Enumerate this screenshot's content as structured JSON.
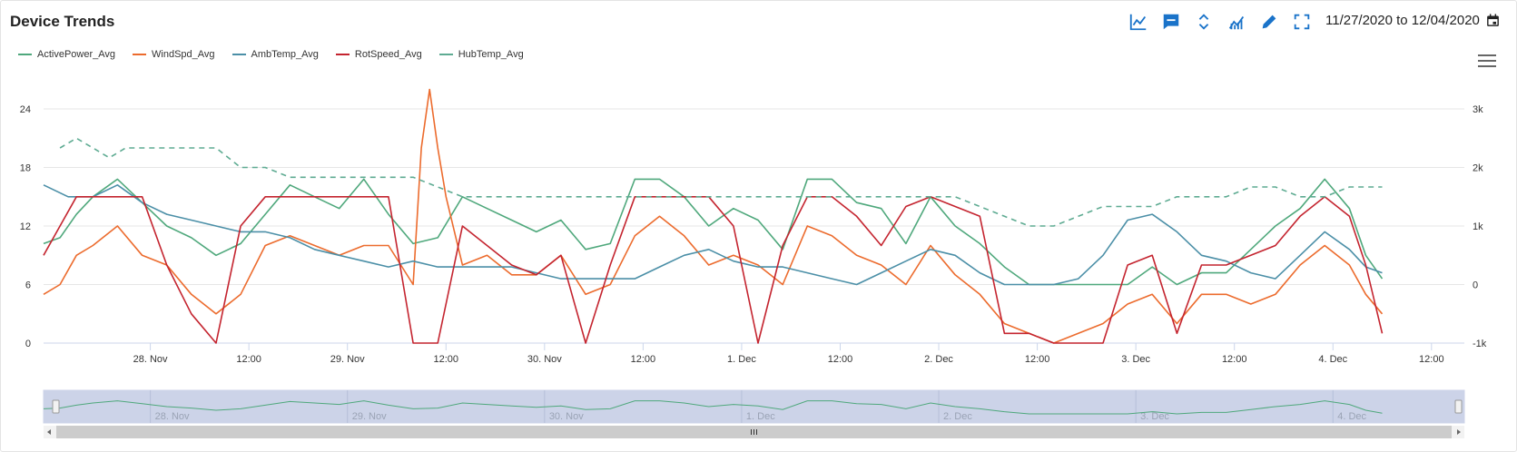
{
  "header": {
    "title": "Device Trends",
    "date_range": "11/27/2020 to 12/04/2020",
    "toolbar": [
      {
        "name": "line-chart-icon"
      },
      {
        "name": "comment-icon"
      },
      {
        "name": "expand-collapse-icon"
      },
      {
        "name": "trend-chart-icon"
      },
      {
        "name": "pencil-icon"
      },
      {
        "name": "fullscreen-icon"
      }
    ],
    "accent_color": "#1a73c9"
  },
  "chart_data": {
    "type": "line",
    "title": "",
    "xlabel": "",
    "x_range": [
      "2020-11-27T11:00",
      "2020-12-04T16:00"
    ],
    "x_ticks": [
      {
        "t": "2020-11-28T00:00",
        "label": "28. Nov"
      },
      {
        "t": "2020-11-28T12:00",
        "label": "12:00"
      },
      {
        "t": "2020-11-29T00:00",
        "label": "29. Nov"
      },
      {
        "t": "2020-11-29T12:00",
        "label": "12:00"
      },
      {
        "t": "2020-11-30T00:00",
        "label": "30. Nov"
      },
      {
        "t": "2020-11-30T12:00",
        "label": "12:00"
      },
      {
        "t": "2020-12-01T00:00",
        "label": "1. Dec"
      },
      {
        "t": "2020-12-01T12:00",
        "label": "12:00"
      },
      {
        "t": "2020-12-02T00:00",
        "label": "2. Dec"
      },
      {
        "t": "2020-12-02T12:00",
        "label": "12:00"
      },
      {
        "t": "2020-12-03T00:00",
        "label": "3. Dec"
      },
      {
        "t": "2020-12-03T12:00",
        "label": "12:00"
      },
      {
        "t": "2020-12-04T00:00",
        "label": "4. Dec"
      },
      {
        "t": "2020-12-04T12:00",
        "label": "12:00"
      }
    ],
    "y_left": {
      "ticks": [
        "0",
        "6",
        "12",
        "18",
        "24"
      ],
      "range": [
        0,
        24
      ]
    },
    "y_right": {
      "ticks": [
        "-1k",
        "0",
        "1k",
        "2k",
        "3k"
      ],
      "range": [
        -1000,
        3000
      ]
    },
    "grid": true,
    "legend_position": "top-left",
    "navigator_labels": [
      "28. Nov",
      "29. Nov",
      "30. Nov",
      "1. Dec",
      "2. Dec",
      "3. Dec",
      "4. Dec"
    ],
    "series": [
      {
        "name": "ActivePower_Avg",
        "color": "#4fa87c",
        "axis": "right",
        "values": [
          [
            0,
            700
          ],
          [
            2,
            800
          ],
          [
            4,
            1200
          ],
          [
            6,
            1500
          ],
          [
            9,
            1800
          ],
          [
            12,
            1400
          ],
          [
            15,
            1000
          ],
          [
            18,
            800
          ],
          [
            21,
            500
          ],
          [
            24,
            700
          ],
          [
            27,
            1200
          ],
          [
            30,
            1700
          ],
          [
            33,
            1500
          ],
          [
            36,
            1300
          ],
          [
            39,
            1800
          ],
          [
            42,
            1200
          ],
          [
            45,
            700
          ],
          [
            48,
            800
          ],
          [
            51,
            1500
          ],
          [
            54,
            1300
          ],
          [
            57,
            1100
          ],
          [
            60,
            900
          ],
          [
            63,
            1100
          ],
          [
            66,
            600
          ],
          [
            69,
            700
          ],
          [
            72,
            1800
          ],
          [
            75,
            1800
          ],
          [
            78,
            1500
          ],
          [
            81,
            1000
          ],
          [
            84,
            1300
          ],
          [
            87,
            1100
          ],
          [
            90,
            600
          ],
          [
            93,
            1800
          ],
          [
            96,
            1800
          ],
          [
            99,
            1400
          ],
          [
            102,
            1300
          ],
          [
            105,
            700
          ],
          [
            108,
            1500
          ],
          [
            111,
            1000
          ],
          [
            114,
            700
          ],
          [
            117,
            300
          ],
          [
            120,
            0
          ],
          [
            123,
            0
          ],
          [
            126,
            0
          ],
          [
            129,
            0
          ],
          [
            132,
            0
          ],
          [
            135,
            300
          ],
          [
            138,
            0
          ],
          [
            141,
            200
          ],
          [
            144,
            200
          ],
          [
            147,
            600
          ],
          [
            150,
            1000
          ],
          [
            153,
            1300
          ],
          [
            156,
            1800
          ],
          [
            159,
            1300
          ],
          [
            161,
            500
          ],
          [
            163,
            100
          ]
        ]
      },
      {
        "name": "WindSpd_Avg",
        "color": "#ec6b2d",
        "axis": "left",
        "values": [
          [
            0,
            5
          ],
          [
            2,
            6
          ],
          [
            4,
            9
          ],
          [
            6,
            10
          ],
          [
            9,
            12
          ],
          [
            12,
            9
          ],
          [
            15,
            8
          ],
          [
            18,
            5
          ],
          [
            21,
            3
          ],
          [
            24,
            5
          ],
          [
            27,
            10
          ],
          [
            30,
            11
          ],
          [
            33,
            10
          ],
          [
            36,
            9
          ],
          [
            39,
            10
          ],
          [
            42,
            10
          ],
          [
            45,
            6
          ],
          [
            46,
            20
          ],
          [
            47,
            26
          ],
          [
            48,
            20
          ],
          [
            49,
            15
          ],
          [
            51,
            8
          ],
          [
            54,
            9
          ],
          [
            57,
            7
          ],
          [
            60,
            7
          ],
          [
            63,
            9
          ],
          [
            66,
            5
          ],
          [
            69,
            6
          ],
          [
            72,
            11
          ],
          [
            75,
            13
          ],
          [
            78,
            11
          ],
          [
            81,
            8
          ],
          [
            84,
            9
          ],
          [
            87,
            8
          ],
          [
            90,
            6
          ],
          [
            93,
            12
          ],
          [
            96,
            11
          ],
          [
            99,
            9
          ],
          [
            102,
            8
          ],
          [
            105,
            6
          ],
          [
            108,
            10
          ],
          [
            111,
            7
          ],
          [
            114,
            5
          ],
          [
            117,
            2
          ],
          [
            120,
            1
          ],
          [
            123,
            0
          ],
          [
            126,
            1
          ],
          [
            129,
            2
          ],
          [
            132,
            4
          ],
          [
            135,
            5
          ],
          [
            138,
            2
          ],
          [
            141,
            5
          ],
          [
            144,
            5
          ],
          [
            147,
            4
          ],
          [
            150,
            5
          ],
          [
            153,
            8
          ],
          [
            156,
            10
          ],
          [
            159,
            8
          ],
          [
            161,
            5
          ],
          [
            163,
            3
          ]
        ]
      },
      {
        "name": "AmbTemp_Avg",
        "color": "#4b8fa7",
        "axis": "right",
        "values": [
          [
            0,
            1700
          ],
          [
            3,
            1500
          ],
          [
            6,
            1500
          ],
          [
            9,
            1700
          ],
          [
            12,
            1400
          ],
          [
            15,
            1200
          ],
          [
            18,
            1100
          ],
          [
            21,
            1000
          ],
          [
            24,
            900
          ],
          [
            27,
            900
          ],
          [
            30,
            800
          ],
          [
            33,
            600
          ],
          [
            36,
            500
          ],
          [
            39,
            400
          ],
          [
            42,
            300
          ],
          [
            45,
            400
          ],
          [
            48,
            300
          ],
          [
            51,
            300
          ],
          [
            54,
            300
          ],
          [
            57,
            300
          ],
          [
            60,
            200
          ],
          [
            63,
            100
          ],
          [
            66,
            100
          ],
          [
            69,
            100
          ],
          [
            72,
            100
          ],
          [
            75,
            300
          ],
          [
            78,
            500
          ],
          [
            81,
            600
          ],
          [
            84,
            400
          ],
          [
            87,
            300
          ],
          [
            90,
            300
          ],
          [
            93,
            200
          ],
          [
            96,
            100
          ],
          [
            99,
            0
          ],
          [
            102,
            200
          ],
          [
            105,
            400
          ],
          [
            108,
            600
          ],
          [
            111,
            500
          ],
          [
            114,
            200
          ],
          [
            117,
            0
          ],
          [
            120,
            0
          ],
          [
            123,
            0
          ],
          [
            126,
            100
          ],
          [
            129,
            500
          ],
          [
            132,
            1100
          ],
          [
            135,
            1200
          ],
          [
            138,
            900
          ],
          [
            141,
            500
          ],
          [
            144,
            400
          ],
          [
            147,
            200
          ],
          [
            150,
            100
          ],
          [
            153,
            500
          ],
          [
            156,
            900
          ],
          [
            159,
            600
          ],
          [
            161,
            300
          ],
          [
            163,
            200
          ]
        ]
      },
      {
        "name": "RotSpeed_Avg",
        "color": "#c4242f",
        "axis": "left",
        "values": [
          [
            0,
            9
          ],
          [
            2,
            12
          ],
          [
            4,
            15
          ],
          [
            6,
            15
          ],
          [
            9,
            15
          ],
          [
            12,
            15
          ],
          [
            15,
            8
          ],
          [
            18,
            3
          ],
          [
            21,
            0
          ],
          [
            24,
            12
          ],
          [
            27,
            15
          ],
          [
            30,
            15
          ],
          [
            33,
            15
          ],
          [
            36,
            15
          ],
          [
            39,
            15
          ],
          [
            42,
            15
          ],
          [
            45,
            0
          ],
          [
            48,
            0
          ],
          [
            51,
            12
          ],
          [
            54,
            10
          ],
          [
            57,
            8
          ],
          [
            60,
            7
          ],
          [
            63,
            9
          ],
          [
            66,
            0
          ],
          [
            69,
            8
          ],
          [
            72,
            15
          ],
          [
            75,
            15
          ],
          [
            78,
            15
          ],
          [
            81,
            15
          ],
          [
            84,
            12
          ],
          [
            87,
            0
          ],
          [
            90,
            10
          ],
          [
            93,
            15
          ],
          [
            96,
            15
          ],
          [
            99,
            13
          ],
          [
            102,
            10
          ],
          [
            105,
            14
          ],
          [
            108,
            15
          ],
          [
            111,
            14
          ],
          [
            114,
            13
          ],
          [
            117,
            1
          ],
          [
            120,
            1
          ],
          [
            123,
            0
          ],
          [
            126,
            0
          ],
          [
            129,
            0
          ],
          [
            132,
            8
          ],
          [
            135,
            9
          ],
          [
            138,
            1
          ],
          [
            141,
            8
          ],
          [
            144,
            8
          ],
          [
            147,
            9
          ],
          [
            150,
            10
          ],
          [
            153,
            13
          ],
          [
            156,
            15
          ],
          [
            159,
            13
          ],
          [
            161,
            8
          ],
          [
            163,
            1
          ]
        ]
      },
      {
        "name": "HubTemp_Avg",
        "color": "#5eab92",
        "axis": "left",
        "values": [
          [
            2,
            20
          ],
          [
            4,
            21
          ],
          [
            6,
            20
          ],
          [
            8,
            19
          ],
          [
            10,
            20
          ],
          [
            12,
            20
          ],
          [
            15,
            20
          ],
          [
            18,
            20
          ],
          [
            21,
            20
          ],
          [
            24,
            18
          ],
          [
            27,
            18
          ],
          [
            30,
            17
          ],
          [
            33,
            17
          ],
          [
            36,
            17
          ],
          [
            39,
            17
          ],
          [
            42,
            17
          ],
          [
            45,
            17
          ],
          [
            48,
            16
          ],
          [
            51,
            15
          ],
          [
            54,
            15
          ],
          [
            57,
            15
          ],
          [
            60,
            15
          ],
          [
            63,
            15
          ],
          [
            66,
            15
          ],
          [
            69,
            15
          ],
          [
            72,
            15
          ],
          [
            75,
            15
          ],
          [
            78,
            15
          ],
          [
            81,
            15
          ],
          [
            84,
            15
          ],
          [
            87,
            15
          ],
          [
            90,
            15
          ],
          [
            93,
            15
          ],
          [
            96,
            15
          ],
          [
            99,
            15
          ],
          [
            102,
            15
          ],
          [
            105,
            15
          ],
          [
            108,
            15
          ],
          [
            111,
            15
          ],
          [
            114,
            14
          ],
          [
            117,
            13
          ],
          [
            120,
            12
          ],
          [
            123,
            12
          ],
          [
            126,
            13
          ],
          [
            129,
            14
          ],
          [
            132,
            14
          ],
          [
            135,
            14
          ],
          [
            138,
            15
          ],
          [
            141,
            15
          ],
          [
            144,
            15
          ],
          [
            147,
            16
          ],
          [
            150,
            16
          ],
          [
            153,
            15
          ],
          [
            156,
            15
          ],
          [
            159,
            16
          ],
          [
            161,
            16
          ],
          [
            163,
            16
          ]
        ]
      }
    ]
  }
}
